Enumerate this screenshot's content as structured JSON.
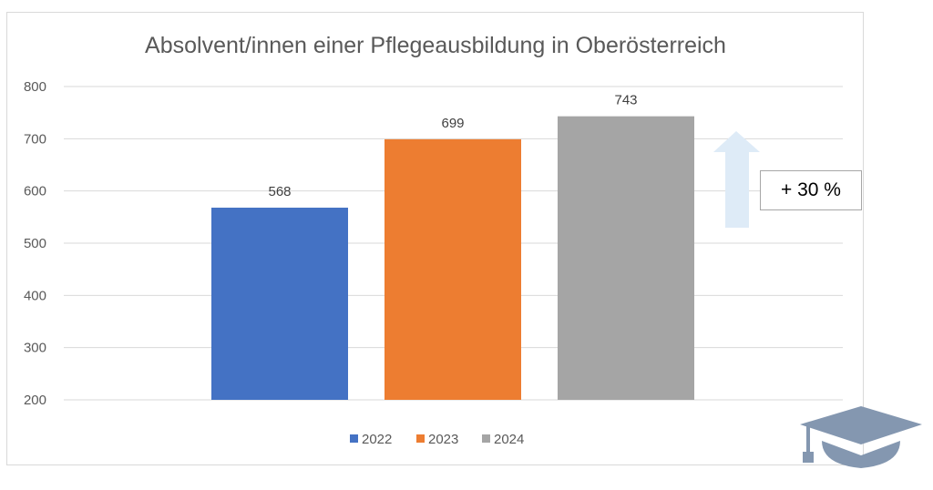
{
  "chart_data": {
    "type": "bar",
    "title": "Absolvent/innen einer Pflegeausbildung in Oberösterreich",
    "xlabel": "",
    "ylabel": "",
    "categories": [
      "2022",
      "2023",
      "2024"
    ],
    "values": [
      568,
      699,
      743
    ],
    "data_labels": [
      "568",
      "699",
      "743"
    ],
    "ylim": [
      200,
      800
    ],
    "yticks": [
      200,
      300,
      400,
      500,
      600,
      700,
      800
    ],
    "ytick_labels": [
      "200",
      "300",
      "400",
      "500",
      "600",
      "700",
      "800"
    ],
    "colors": [
      "#4472C4",
      "#ED7D31",
      "#A5A5A5"
    ],
    "legend": {
      "entries": [
        "2022",
        "2023",
        "2024"
      ],
      "placement": "bottom"
    },
    "grid": true,
    "annotation": {
      "text": "+ 30 %",
      "arrow_color": "#DEEBF7"
    }
  },
  "decorations": {
    "icon": "graduation-cap-icon",
    "icon_color": "#8497B0"
  }
}
